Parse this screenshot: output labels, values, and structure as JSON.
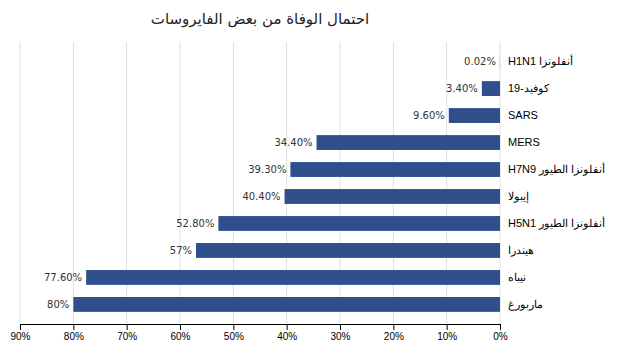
{
  "chart_data": {
    "type": "bar",
    "orientation": "horizontal",
    "title": "احتمال الوفاة من بعض الفايروسات",
    "categories": [
      "ماربورغ",
      "نيباه",
      "هيندرا",
      "أنفلونزا الطيور H5N1",
      "إيبولا",
      "أنفلونزا الطيور H7N9",
      "MERS",
      "SARS",
      "كوفيد-19",
      "أنفلونزا H1N1"
    ],
    "values": [
      80,
      77.6,
      57,
      52.8,
      40.4,
      39.3,
      34.4,
      9.6,
      3.4,
      0.02
    ],
    "value_labels": [
      "80%",
      "77.60%",
      "57%",
      "52.80%",
      "40.40%",
      "39.30%",
      "34.40%",
      "9.60%",
      "3.40%",
      "0.02%"
    ],
    "data_labels": true,
    "color": "#2E4E8C",
    "xlim": [
      90,
      0
    ],
    "xticks": [
      {
        "value": 90,
        "label": "90%"
      },
      {
        "value": 80,
        "label": "80%"
      },
      {
        "value": 70,
        "label": "70%"
      },
      {
        "value": 60,
        "label": "60%"
      },
      {
        "value": 50,
        "label": "50%"
      },
      {
        "value": 40,
        "label": "40%"
      },
      {
        "value": 30,
        "label": "30%"
      },
      {
        "value": 20,
        "label": "20%"
      },
      {
        "value": 10,
        "label": "10%"
      },
      {
        "value": 0,
        "label": "0%"
      }
    ],
    "grid": true
  }
}
